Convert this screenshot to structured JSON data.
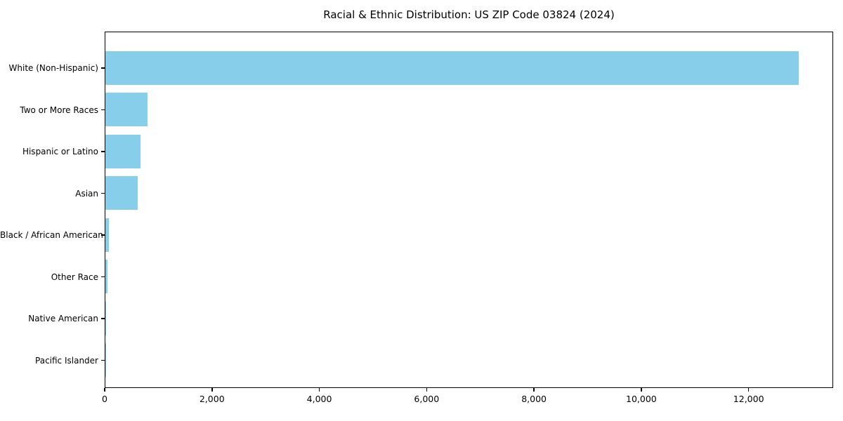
{
  "figure": {
    "background": "#ffffff",
    "text_color": "#000000"
  },
  "chart_data": {
    "type": "bar",
    "orientation": "horizontal",
    "title": "Racial & Ethnic Distribution: US ZIP Code 03824 (2024)",
    "categories": [
      "White (Non-Hispanic)",
      "Two or More Races",
      "Hispanic or Latino",
      "Asian",
      "Black / African American",
      "Other Race",
      "Native American",
      "Pacific Islander"
    ],
    "values": [
      12925,
      790,
      655,
      600,
      70,
      35,
      6,
      2
    ],
    "xlabel": "",
    "ylabel": "",
    "xlim": [
      0,
      13575
    ],
    "xticks": [
      0,
      2000,
      4000,
      6000,
      8000,
      10000,
      12000
    ],
    "xtick_labels": [
      "0",
      "2,000",
      "4,000",
      "6,000",
      "8,000",
      "10,000",
      "12,000"
    ],
    "bar_color": "#87CEEB",
    "grid": false,
    "legend": null
  }
}
